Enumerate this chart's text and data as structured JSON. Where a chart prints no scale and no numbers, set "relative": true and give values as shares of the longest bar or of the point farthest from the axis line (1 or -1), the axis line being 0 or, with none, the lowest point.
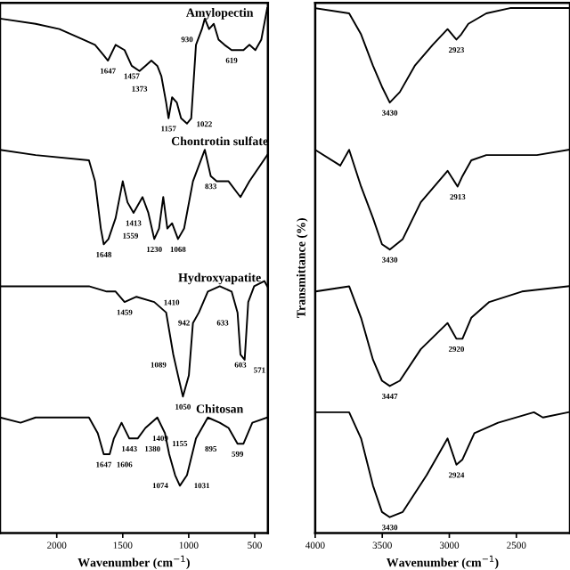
{
  "chart_data": [
    {
      "type": "line",
      "relative": true,
      "xlabel": "Wavenumber (cm$^{−1}$)",
      "xlim": [
        2430,
        400
      ],
      "xticks": [
        2000,
        1500,
        1000,
        500
      ],
      "series": [
        {
          "name": "Amylopectin",
          "color": "#000000",
          "x": [
            2430,
            2160,
            1980,
            1800,
            1710,
            1644,
            1612,
            1554,
            1486,
            1432,
            1373,
            1328,
            1283,
            1238,
            1207,
            1171,
            1153,
            1126,
            1090,
            1058,
            1013,
            981,
            945,
            900,
            878,
            846,
            810,
            774,
            729,
            675,
            630,
            585,
            540,
            495,
            450,
            405
          ],
          "values": [
            0.98,
            0.97,
            0.96,
            0.94,
            0.93,
            0.91,
            0.9,
            0.93,
            0.92,
            0.89,
            0.88,
            0.89,
            0.9,
            0.89,
            0.87,
            0.82,
            0.79,
            0.83,
            0.82,
            0.79,
            0.78,
            0.79,
            0.93,
            0.96,
            0.98,
            0.96,
            0.97,
            0.94,
            0.93,
            0.92,
            0.92,
            0.92,
            0.93,
            0.92,
            0.94,
            1.0
          ]
        },
        {
          "name": "Chontrotin sulfate",
          "color": "#000000",
          "x": [
            2430,
            2160,
            1756,
            1710,
            1666,
            1644,
            1608,
            1554,
            1500,
            1464,
            1418,
            1350,
            1306,
            1261,
            1225,
            1193,
            1162,
            1126,
            1081,
            1035,
            968,
            878,
            833,
            788,
            698,
            608,
            540,
            405
          ],
          "values": [
            0.73,
            0.72,
            0.71,
            0.67,
            0.58,
            0.55,
            0.56,
            0.6,
            0.67,
            0.63,
            0.61,
            0.64,
            0.61,
            0.56,
            0.58,
            0.64,
            0.58,
            0.59,
            0.56,
            0.58,
            0.67,
            0.73,
            0.68,
            0.67,
            0.67,
            0.64,
            0.67,
            0.72
          ]
        },
        {
          "name": "Hydroxyapatite",
          "color": "#000000",
          "x": [
            2430,
            2160,
            1756,
            1621,
            1554,
            1486,
            1396,
            1261,
            1171,
            1117,
            1081,
            1044,
            999,
            968,
            923,
            855,
            765,
            675,
            630,
            608,
            576,
            549,
            504,
            427,
            405
          ],
          "values": [
            0.47,
            0.47,
            0.47,
            0.46,
            0.46,
            0.44,
            0.45,
            0.44,
            0.42,
            0.34,
            0.3,
            0.26,
            0.3,
            0.4,
            0.42,
            0.46,
            0.47,
            0.46,
            0.42,
            0.34,
            0.33,
            0.44,
            0.47,
            0.48,
            0.47
          ]
        },
        {
          "name": "Chitosan",
          "color": "#000000",
          "x": [
            2430,
            2274,
            2160,
            1756,
            1689,
            1644,
            1599,
            1567,
            1509,
            1450,
            1387,
            1328,
            1238,
            1180,
            1148,
            1103,
            1067,
            1013,
            945,
            855,
            765,
            698,
            630,
            585,
            518,
            405
          ],
          "values": [
            0.22,
            0.21,
            0.22,
            0.22,
            0.19,
            0.15,
            0.15,
            0.18,
            0.21,
            0.18,
            0.18,
            0.2,
            0.22,
            0.19,
            0.15,
            0.11,
            0.09,
            0.11,
            0.18,
            0.22,
            0.21,
            0.2,
            0.17,
            0.17,
            0.21,
            0.22
          ]
        }
      ],
      "annotations": [
        {
          "text": "1647",
          "x": 1612,
          "y": 0.9
        },
        {
          "text": "1457",
          "x": 1432,
          "y": 0.89
        },
        {
          "text": "1373",
          "x": 1373,
          "y": 0.88
        },
        {
          "text": "1157",
          "x": 1153,
          "y": 0.79
        },
        {
          "text": "1022",
          "x": 1013,
          "y": 0.78
        },
        {
          "text": "930",
          "x": 900,
          "y": 0.96
        },
        {
          "text": "619",
          "x": 675,
          "y": 0.92
        },
        {
          "text": "1648",
          "x": 1644,
          "y": 0.55
        },
        {
          "text": "1413",
          "x": 1418,
          "y": 0.61
        },
        {
          "text": "1559",
          "x": 1554,
          "y": 0.6
        },
        {
          "text": "1230",
          "x": 1261,
          "y": 0.56
        },
        {
          "text": "1068",
          "x": 1081,
          "y": 0.56
        },
        {
          "text": "833",
          "x": 833,
          "y": 0.68
        },
        {
          "text": "1459",
          "x": 1486,
          "y": 0.44
        },
        {
          "text": "1410",
          "x": 1261,
          "y": 0.44
        },
        {
          "text": "1089",
          "x": 1117,
          "y": 0.34
        },
        {
          "text": "1050",
          "x": 1044,
          "y": 0.26
        },
        {
          "text": "942",
          "x": 923,
          "y": 0.42
        },
        {
          "text": "633",
          "x": 630,
          "y": 0.42
        },
        {
          "text": "603",
          "x": 608,
          "y": 0.34
        },
        {
          "text": "571",
          "x": 576,
          "y": 0.33
        },
        {
          "text": "1647",
          "x": 1644,
          "y": 0.15
        },
        {
          "text": "1606",
          "x": 1599,
          "y": 0.15
        },
        {
          "text": "1443",
          "x": 1450,
          "y": 0.18
        },
        {
          "text": "1380",
          "x": 1387,
          "y": 0.18
        },
        {
          "text": "1409",
          "x": 1328,
          "y": 0.2
        },
        {
          "text": "1155",
          "x": 1180,
          "y": 0.19
        },
        {
          "text": "1074",
          "x": 1103,
          "y": 0.11
        },
        {
          "text": "1031",
          "x": 1013,
          "y": 0.11
        },
        {
          "text": "895",
          "x": 945,
          "y": 0.18
        },
        {
          "text": "599",
          "x": 630,
          "y": 0.17
        }
      ]
    },
    {
      "type": "line",
      "relative": true,
      "xlabel": "Wavenumber (cm$^{−1}$)",
      "ylabel": "Transmittance (%)",
      "xlim": [
        4000,
        2100
      ],
      "xticks": [
        4000,
        3500,
        3000,
        2500
      ],
      "series": [
        {
          "color": "#000000",
          "x": [
            4000,
            3747,
            3658,
            3569,
            3502,
            3444,
            3369,
            3258,
            3124,
            3013,
            2947,
            2911,
            2858,
            2724,
            2547,
            2110
          ],
          "values": [
            1.0,
            0.99,
            0.95,
            0.89,
            0.85,
            0.82,
            0.84,
            0.89,
            0.93,
            0.96,
            0.94,
            0.95,
            0.97,
            0.99,
            1.0,
            1.0
          ]
        },
        {
          "color": "#000000",
          "x": [
            4000,
            3813,
            3747,
            3658,
            3569,
            3502,
            3444,
            3347,
            3213,
            3013,
            2938,
            2902,
            2836,
            2724,
            2458,
            2347,
            2110
          ],
          "values": [
            0.73,
            0.7,
            0.73,
            0.66,
            0.6,
            0.55,
            0.54,
            0.56,
            0.63,
            0.69,
            0.66,
            0.68,
            0.71,
            0.72,
            0.72,
            0.72,
            0.73
          ]
        },
        {
          "color": "#000000",
          "x": [
            4000,
            3747,
            3658,
            3569,
            3502,
            3444,
            3369,
            3213,
            3013,
            2947,
            2902,
            2836,
            2702,
            2458,
            2110
          ],
          "values": [
            0.46,
            0.47,
            0.41,
            0.33,
            0.29,
            0.28,
            0.29,
            0.35,
            0.4,
            0.37,
            0.37,
            0.41,
            0.44,
            0.46,
            0.47
          ]
        },
        {
          "color": "#000000",
          "x": [
            4000,
            3791,
            3747,
            3658,
            3569,
            3502,
            3444,
            3347,
            3169,
            3013,
            2947,
            2902,
            2813,
            2636,
            2369,
            2302,
            2110
          ],
          "values": [
            0.23,
            0.23,
            0.23,
            0.18,
            0.09,
            0.04,
            0.03,
            0.04,
            0.11,
            0.18,
            0.13,
            0.14,
            0.19,
            0.21,
            0.23,
            0.22,
            0.23
          ]
        }
      ],
      "annotations": [
        {
          "text": "3430",
          "x": 3444,
          "y": 0.82
        },
        {
          "text": "2923",
          "x": 2947,
          "y": 0.94
        },
        {
          "text": "3430",
          "x": 3444,
          "y": 0.54
        },
        {
          "text": "2913",
          "x": 2938,
          "y": 0.66
        },
        {
          "text": "3447",
          "x": 3444,
          "y": 0.28
        },
        {
          "text": "2920",
          "x": 2947,
          "y": 0.37
        },
        {
          "text": "3430",
          "x": 3444,
          "y": 0.03
        },
        {
          "text": "2924",
          "x": 2947,
          "y": 0.13
        }
      ]
    }
  ]
}
